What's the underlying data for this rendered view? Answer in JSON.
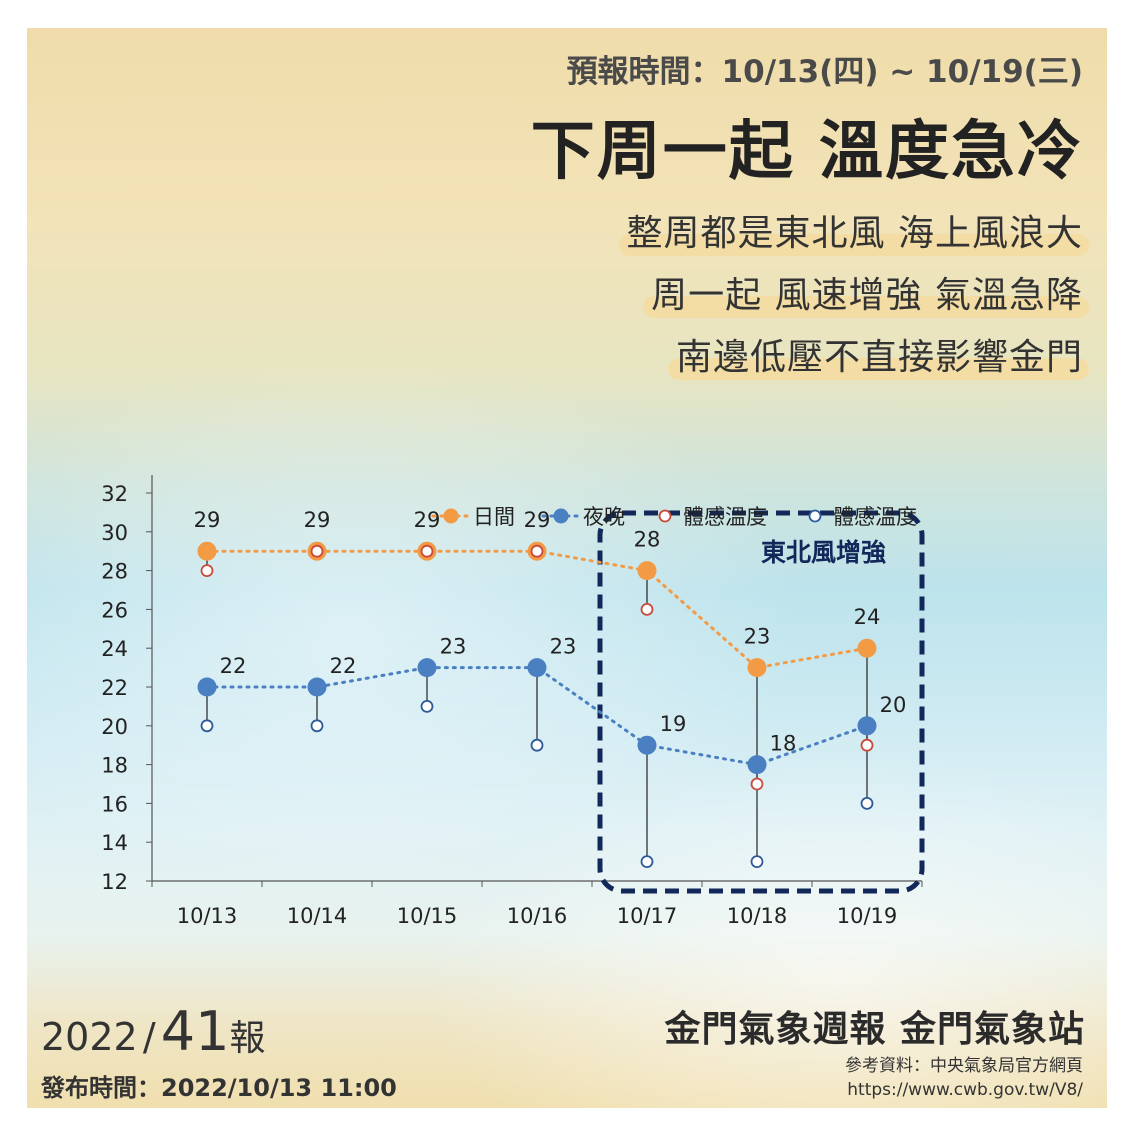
{
  "forecast_period": "預報時間：10/13(四) ~ 10/19(三)",
  "headline": "下周一起 溫度急冷",
  "summary_lines": [
    "整周都是東北風 海上風浪大",
    "周一起 風速增強 氣溫急降",
    "南邊低壓不直接影響金門"
  ],
  "issue": {
    "year": "2022",
    "slash": "/",
    "number": "41",
    "suffix": "報"
  },
  "station": "金門氣象週報  金門氣象站",
  "release_time": "發布時間：2022/10/13 11:00",
  "reference": {
    "label": "參考資料：中央氣象局官方網頁",
    "url": "https://www.cwb.gov.tw/V8/"
  },
  "colors": {
    "day": "#f39a45",
    "night": "#4a7fc1",
    "feel_day": "#c94a3a",
    "feel_night": "#2f5a98",
    "box": "#13285a"
  },
  "chart_data": {
    "type": "line",
    "categories": [
      "10/13",
      "10/14",
      "10/15",
      "10/16",
      "10/17",
      "10/18",
      "10/19"
    ],
    "ylim": [
      12,
      32
    ],
    "yticks": [
      12,
      14,
      16,
      18,
      20,
      22,
      24,
      26,
      28,
      30,
      32
    ],
    "legend_position": "top-right",
    "series": [
      {
        "name": "日間",
        "values": [
          29,
          29,
          29,
          29,
          28,
          23,
          24
        ]
      },
      {
        "name": "夜晚",
        "values": [
          22,
          22,
          23,
          23,
          19,
          18,
          20
        ]
      },
      {
        "name": "體感溫度",
        "values": [
          28,
          29,
          29,
          29,
          26,
          17,
          19
        ]
      },
      {
        "name": "體感溫度",
        "values": [
          20,
          20,
          21,
          19,
          13,
          13,
          16
        ]
      }
    ],
    "annotation": {
      "text": "東北風增強",
      "from_category": "10/17",
      "to_category": "10/19"
    }
  }
}
